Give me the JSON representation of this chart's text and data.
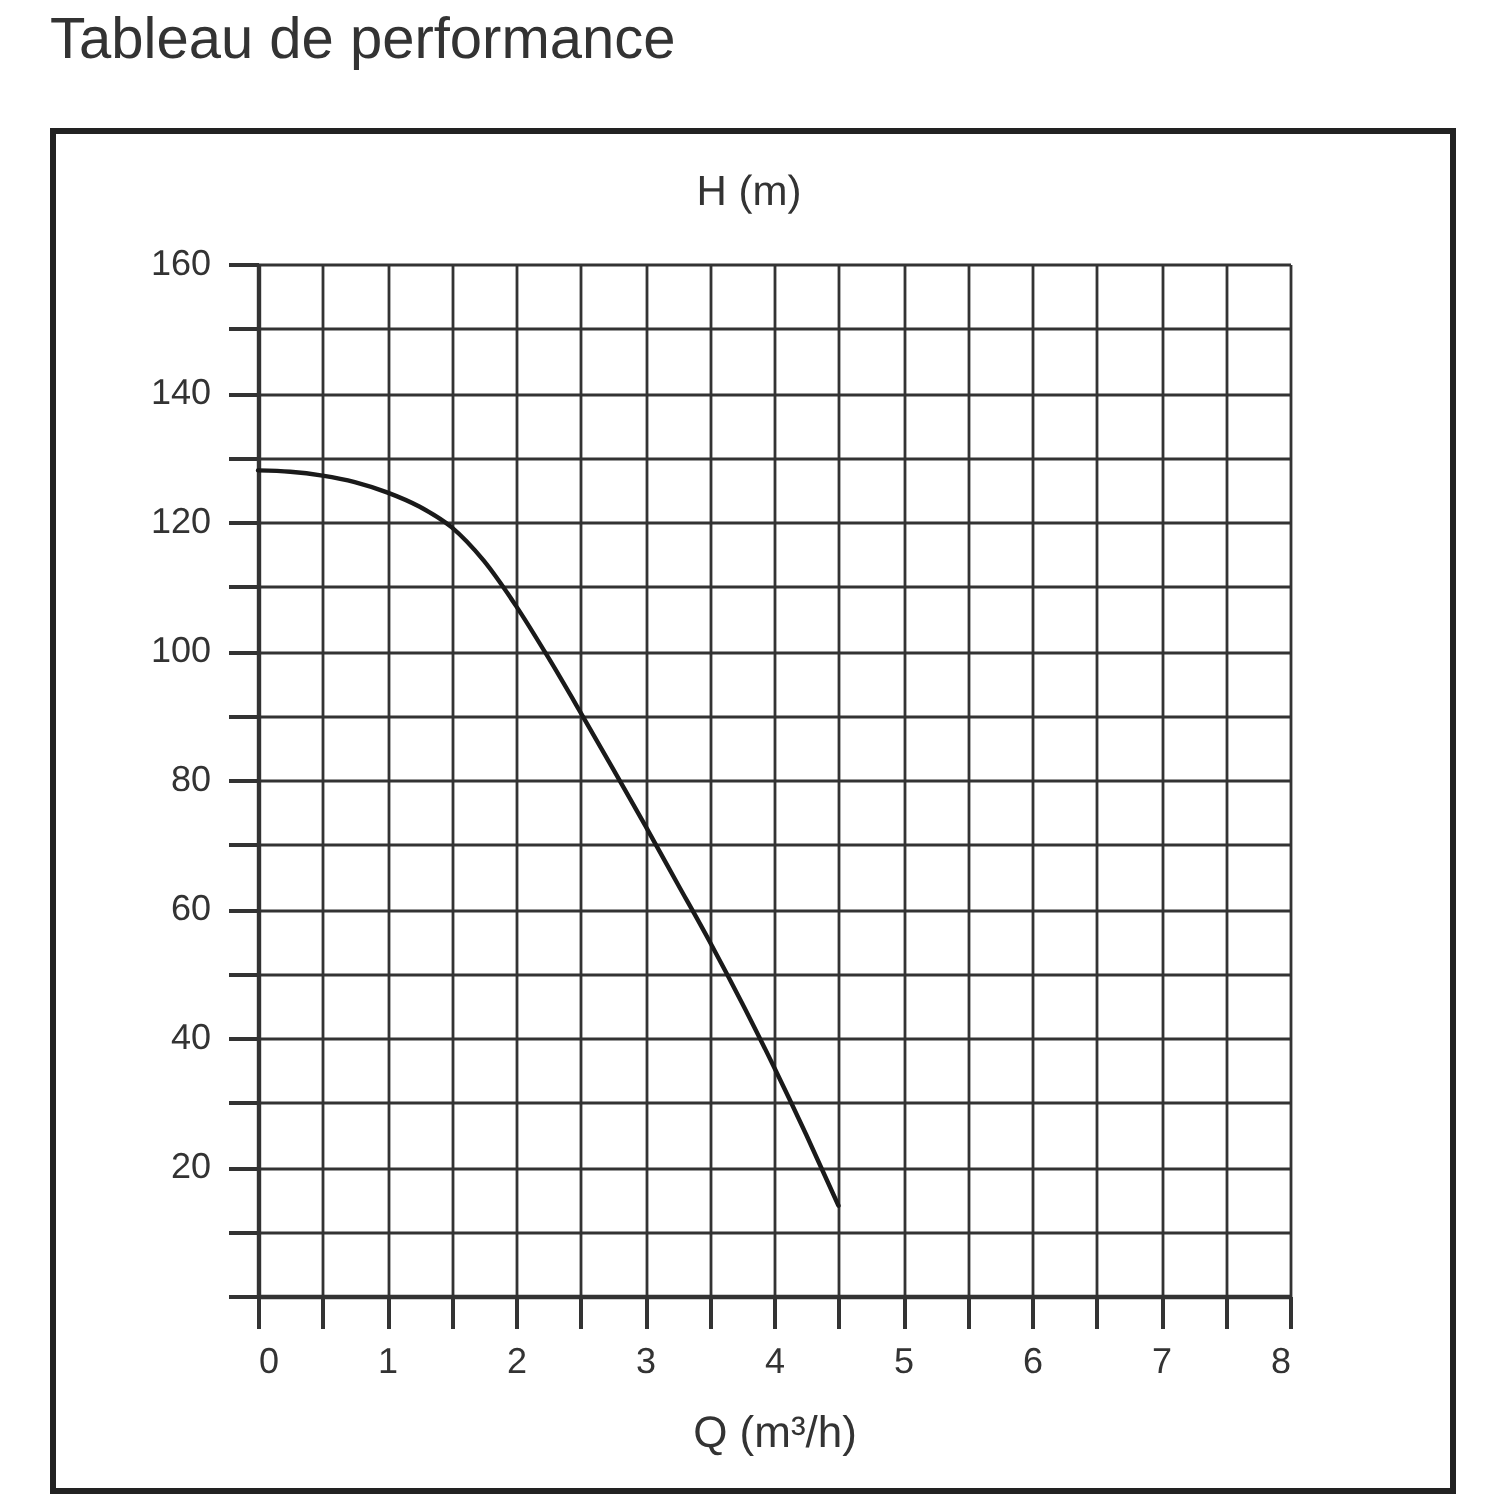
{
  "chart_data": {
    "type": "line",
    "title": "Tableau de performance",
    "xlabel": "Q (m³/h)",
    "ylabel": "H (m)",
    "x": [
      0,
      0.25,
      0.5,
      0.75,
      1,
      1.25,
      1.5,
      1.75,
      2,
      2.25,
      2.5,
      2.75,
      3,
      3.25,
      3.5,
      3.75,
      4,
      4.25,
      4.5
    ],
    "series": [
      {
        "color": "#1a1a1a",
        "values": [
          128,
          127.8,
          127.2,
          126.2,
          124.6,
          122.4,
          119.2,
          114,
          107,
          99,
          90.5,
          81.8,
          73,
          64,
          55,
          45.5,
          35.5,
          25,
          14
        ]
      }
    ],
    "xlim": [
      0,
      8
    ],
    "ylim": [
      0,
      160
    ],
    "xticks": [
      0,
      {
        "value": 0.5,
        "label": null
      },
      1,
      {
        "value": 1.5,
        "label": null
      },
      2,
      {
        "value": 2.5,
        "label": null
      },
      3,
      {
        "value": 3.5,
        "label": null
      },
      4,
      {
        "value": 4.5,
        "label": null
      },
      5,
      {
        "value": 5.5,
        "label": null
      },
      6,
      {
        "value": 6.5,
        "label": null
      },
      7,
      {
        "value": 7.5,
        "label": null
      },
      8
    ],
    "yticks": [
      {
        "value": 0,
        "label": null
      },
      {
        "value": 10,
        "label": null
      },
      20,
      {
        "value": 30,
        "label": null
      },
      40,
      {
        "value": 50,
        "label": null
      },
      60,
      {
        "value": 70,
        "label": null
      },
      80,
      {
        "value": 90,
        "label": null
      },
      100,
      {
        "value": 110,
        "label": null
      },
      120,
      {
        "value": 130,
        "label": null
      },
      140,
      {
        "value": 150,
        "label": null
      },
      160
    ],
    "grid": true,
    "marker": "none",
    "line_style": "solid"
  }
}
